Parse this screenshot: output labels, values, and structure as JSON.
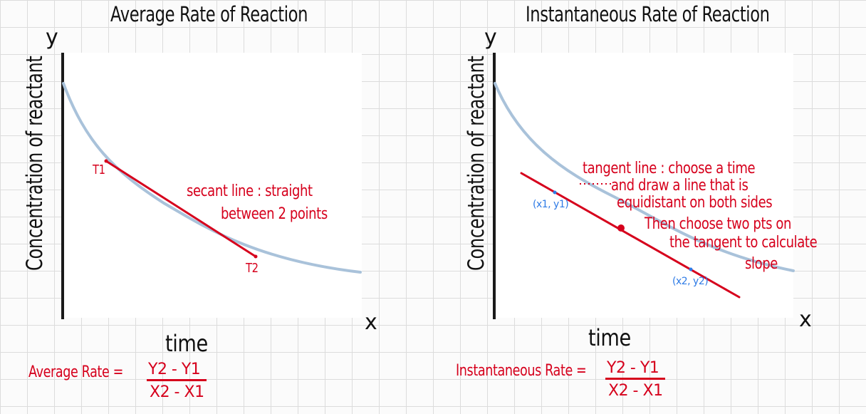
{
  "left": {
    "title": "Average Rate of Reaction",
    "y_axis_letter": "y",
    "x_axis_letter": "x",
    "y_axis_label": "Concentration of reactant",
    "x_axis_label": "time",
    "point1_label": "T1",
    "point2_label": "T2",
    "secant_note_line1": "secant line : straight",
    "secant_note_line2": "between 2 points",
    "formula_lhs": "Average Rate =",
    "formula_numerator": "Y2 - Y1",
    "formula_denominator": "X2 - X1"
  },
  "right": {
    "title": "Instantaneous Rate of Reaction",
    "y_axis_letter": "y",
    "x_axis_letter": "x",
    "y_axis_label": "Concentration of reactant",
    "x_axis_label": "time",
    "tangent_note_line1": "tangent line : choose a time",
    "tangent_note_line2": "and draw a line that is",
    "tangent_note_line3": "equidistant on both sides",
    "tangent_note_line4": "Then choose two pts on",
    "tangent_note_line5": "the tangent to calculate",
    "tangent_note_line6": "slope",
    "point1_label": "(x1, y1)",
    "point2_label": "(x2, y2)",
    "formula_lhs": "Instantaneous Rate =",
    "formula_numerator": "Y2 - Y1",
    "formula_denominator": "X2 - X1"
  },
  "colors": {
    "annotation": "#d6001c",
    "point_marker": "#2e7be6",
    "curve": "#9fbbd6",
    "axis": "#1a1a1a",
    "grid": "#dcdcdc"
  }
}
